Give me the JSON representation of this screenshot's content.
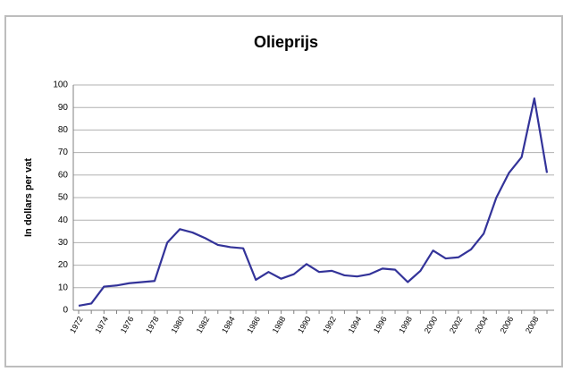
{
  "chart_data": {
    "type": "line",
    "title": "Olieprijs",
    "y_label": "In dollars per vat",
    "categories": [
      "1972",
      null,
      "1974",
      null,
      "1976",
      null,
      "1978",
      null,
      "1980",
      null,
      "1982",
      null,
      "1984",
      null,
      "1986",
      null,
      "1988",
      null,
      "1990",
      null,
      "1992",
      null,
      "1994",
      null,
      "1996",
      null,
      "1998",
      null,
      "2000",
      null,
      "2002",
      null,
      "2004",
      null,
      "2006",
      null,
      "2008",
      null
    ],
    "values": [
      2,
      3,
      10.5,
      11,
      12,
      12.5,
      13,
      30,
      36,
      34.5,
      32,
      29,
      28,
      27.5,
      13.5,
      17,
      14,
      16,
      20.5,
      17,
      17.5,
      15.5,
      15,
      16,
      18.5,
      18,
      12.5,
      17.5,
      26.5,
      23,
      23.5,
      27,
      34,
      50,
      61,
      68,
      94,
      61
    ],
    "color": "#333399",
    "ylim": [
      0,
      100
    ],
    "yticks": [
      0,
      10,
      20,
      30,
      40,
      50,
      60,
      70,
      80,
      90,
      100
    ],
    "grid": true
  }
}
